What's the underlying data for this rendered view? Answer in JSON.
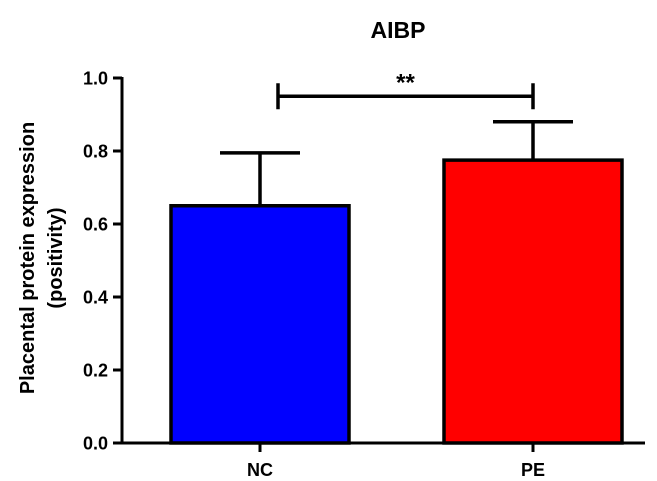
{
  "chart_data": {
    "type": "bar",
    "title": "AIBP",
    "xlabel": "",
    "ylabel_lines": [
      "Placental protein expression",
      "(positivity)"
    ],
    "categories": [
      "NC",
      "PE"
    ],
    "values": [
      0.65,
      0.775
    ],
    "errors": [
      0.145,
      0.105
    ],
    "colors": [
      "#0000ff",
      "#ff0000"
    ],
    "ylim": [
      0,
      1.0
    ],
    "yticks": [
      "0.0",
      "0.2",
      "0.4",
      "0.6",
      "0.8",
      "1.0"
    ],
    "significance": {
      "label": "**",
      "between": [
        "NC",
        "PE"
      ],
      "y": 0.95
    },
    "grid": false,
    "legend": "none"
  }
}
